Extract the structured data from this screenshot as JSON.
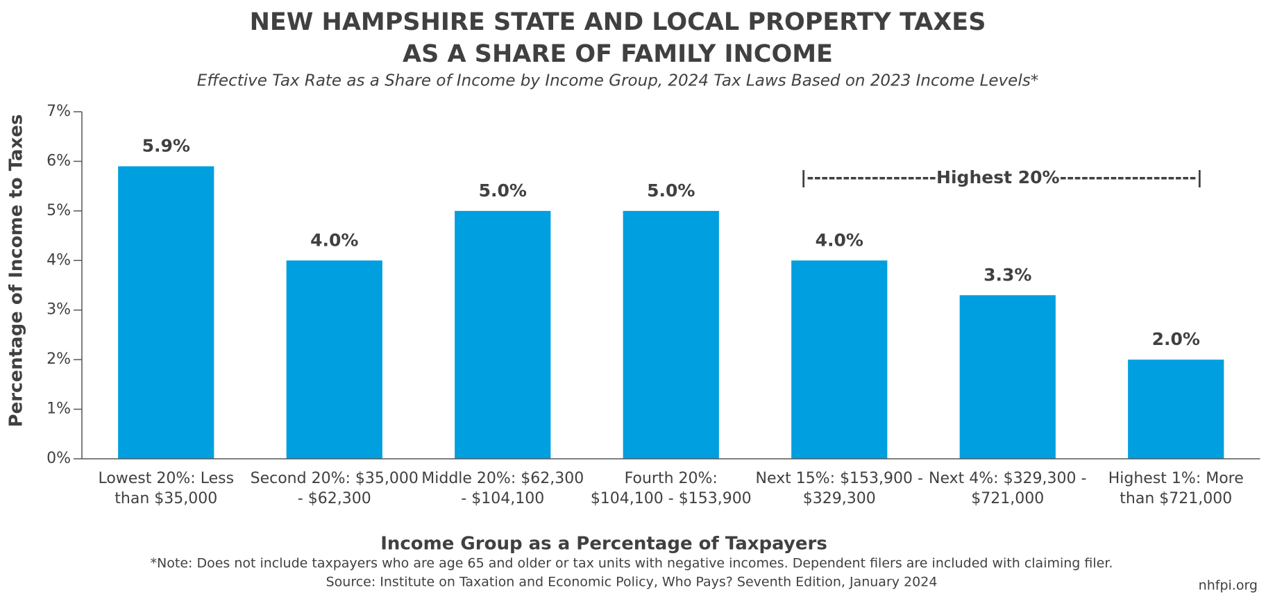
{
  "chart_data": {
    "type": "bar",
    "title": [
      "NEW HAMPSHIRE STATE AND LOCAL PROPERTY TAXES",
      "AS A SHARE OF FAMILY INCOME"
    ],
    "subtitle": "Effective Tax Rate as a Share of Income by Income Group, 2024 Tax Laws Based on 2023 Income Levels*",
    "y_label": "Percentage of Income to Taxes",
    "x_label": "Income Group as a Percentage of Taxpayers",
    "categories": [
      "Lowest 20%: Less than $35,000",
      "Second 20%: $35,000 - $62,300",
      "Middle 20%: $62,300 - $104,100",
      "Fourth 20%: $104,100 - $153,900",
      "Next 15%: $153,900 - $329,300",
      "Next 4%: $329,300 - $721,000",
      "Highest 1%: More than $721,000"
    ],
    "values": [
      5.9,
      4.0,
      5.0,
      5.0,
      4.0,
      3.3,
      2.0
    ],
    "value_labels": [
      "5.9%",
      "4.0%",
      "5.0%",
      "5.0%",
      "4.0%",
      "3.3%",
      "2.0%"
    ],
    "color": "#009fdf",
    "ylim": [
      0,
      7
    ],
    "yticks": [
      {
        "value": 0,
        "label": "0%"
      },
      {
        "value": 1,
        "label": "1%"
      },
      {
        "value": 2,
        "label": "2%"
      },
      {
        "value": 3,
        "label": "3%"
      },
      {
        "value": 4,
        "label": "4%"
      },
      {
        "value": 5,
        "label": "5%"
      },
      {
        "value": 6,
        "label": "6%"
      },
      {
        "value": 7,
        "label": "7%"
      }
    ],
    "annotation": "|------------------Highest 20%-------------------|",
    "notes": [
      "*Note: Does not include taxpayers who are age 65 and older or tax units with negative incomes. Dependent filers are included with claiming filer.",
      "Source: Institute on Taxation and Economic Policy, Who Pays? Seventh Edition, January 2024"
    ],
    "credit": "nhfpi.org"
  }
}
